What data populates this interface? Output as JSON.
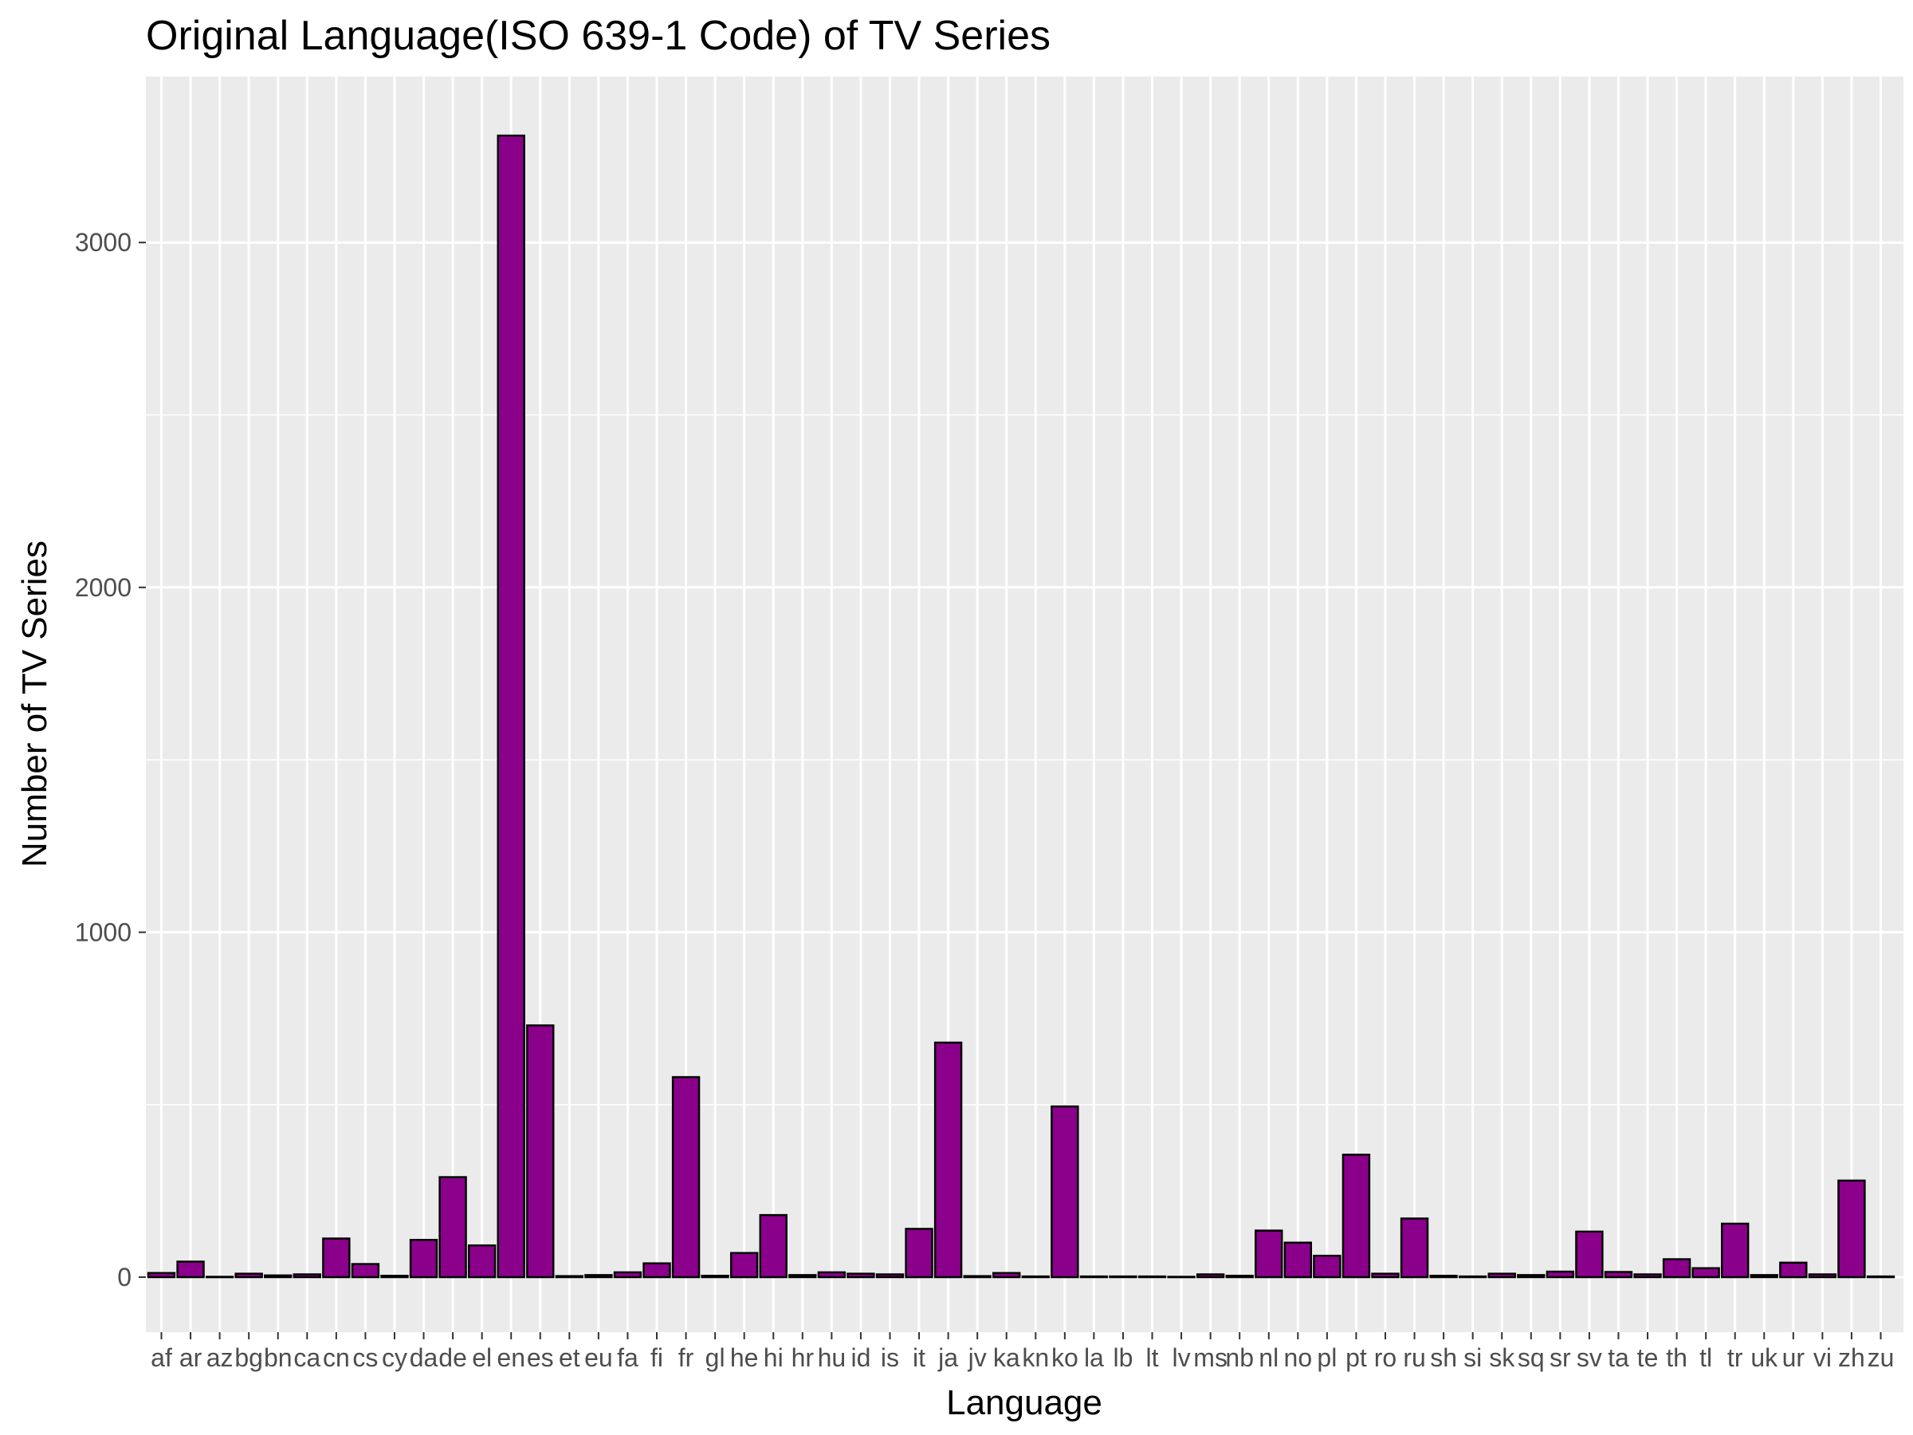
{
  "chart_data": {
    "type": "bar",
    "title": "Original Language(ISO 639-1 Code) of TV Series",
    "xlabel": "Language",
    "ylabel": "Number of TV Series",
    "categories": [
      "af",
      "ar",
      "az",
      "bg",
      "bn",
      "ca",
      "cn",
      "cs",
      "cy",
      "da",
      "de",
      "el",
      "en",
      "es",
      "et",
      "eu",
      "fa",
      "fi",
      "fr",
      "gl",
      "he",
      "hi",
      "hr",
      "hu",
      "id",
      "is",
      "it",
      "ja",
      "jv",
      "ka",
      "kn",
      "ko",
      "la",
      "lb",
      "lt",
      "lv",
      "ms",
      "nb",
      "nl",
      "no",
      "pl",
      "pt",
      "ro",
      "ru",
      "sh",
      "si",
      "sk",
      "sq",
      "sr",
      "sv",
      "ta",
      "te",
      "th",
      "tl",
      "tr",
      "uk",
      "ur",
      "vi",
      "zh",
      "zu"
    ],
    "values": [
      12,
      45,
      1,
      10,
      5,
      8,
      112,
      38,
      4,
      108,
      290,
      92,
      3310,
      730,
      3,
      6,
      14,
      40,
      580,
      4,
      70,
      180,
      6,
      14,
      10,
      8,
      140,
      680,
      3,
      12,
      2,
      495,
      2,
      2,
      2,
      1,
      8,
      4,
      135,
      100,
      62,
      355,
      10,
      170,
      4,
      2,
      10,
      6,
      16,
      132,
      15,
      8,
      52,
      26,
      155,
      6,
      42,
      8,
      280,
      2
    ],
    "ylim": [
      0,
      3300
    ],
    "yticks": [
      0,
      1000,
      2000,
      3000
    ],
    "grid": true,
    "legend": "none",
    "bar_fill": "#8B008B",
    "bar_stroke": "#000000",
    "panel_background": "#EBEBEB",
    "gridline_color": "#FFFFFF"
  }
}
